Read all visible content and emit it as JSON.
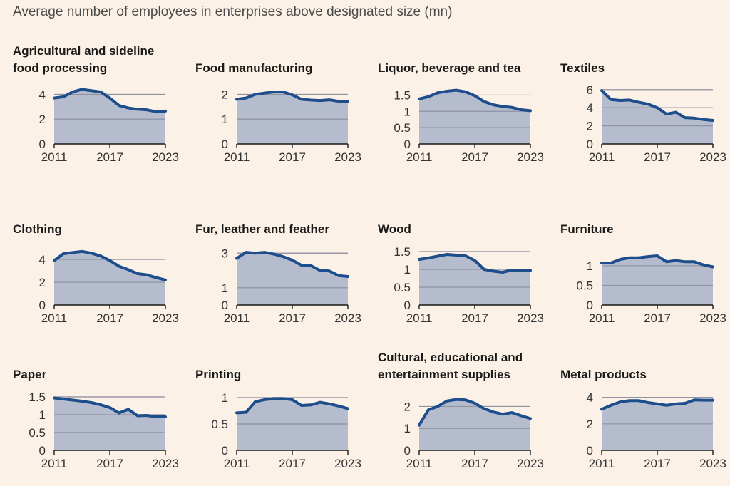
{
  "title": "Average number of employees in enterprises above designated size (mn)",
  "chart_data": [
    {
      "type": "area",
      "title": [
        "Agricultural and sideline",
        "food processing"
      ],
      "x": [
        2011,
        2012,
        2013,
        2014,
        2015,
        2016,
        2017,
        2018,
        2019,
        2020,
        2021,
        2022,
        2023
      ],
      "values": [
        3.7,
        3.8,
        4.2,
        4.4,
        4.3,
        4.2,
        3.7,
        3.1,
        2.9,
        2.8,
        2.75,
        2.6,
        2.65
      ],
      "ylim": [
        0,
        4.6
      ],
      "yticks": [
        0,
        2,
        4
      ],
      "xticks": [
        2011,
        2017,
        2023
      ],
      "grid": true
    },
    {
      "type": "area",
      "title": [
        "Food manufacturing"
      ],
      "x": [
        2011,
        2012,
        2013,
        2014,
        2015,
        2016,
        2017,
        2018,
        2019,
        2020,
        2021,
        2022,
        2023
      ],
      "values": [
        1.8,
        1.85,
        2.0,
        2.05,
        2.1,
        2.1,
        1.98,
        1.8,
        1.77,
        1.75,
        1.78,
        1.72,
        1.72
      ],
      "ylim": [
        0,
        2.3
      ],
      "yticks": [
        0,
        1,
        2
      ],
      "xticks": [
        2011,
        2017,
        2023
      ],
      "grid": true
    },
    {
      "type": "area",
      "title": [
        "Liquor, beverage and tea"
      ],
      "x": [
        2011,
        2012,
        2013,
        2014,
        2015,
        2016,
        2017,
        2018,
        2019,
        2020,
        2021,
        2022,
        2023
      ],
      "values": [
        1.38,
        1.45,
        1.57,
        1.62,
        1.65,
        1.6,
        1.48,
        1.3,
        1.2,
        1.15,
        1.12,
        1.05,
        1.02
      ],
      "ylim": [
        0,
        1.75
      ],
      "yticks": [
        0,
        0.5,
        1,
        1.5
      ],
      "xticks": [
        2011,
        2017,
        2023
      ],
      "grid": true
    },
    {
      "type": "area",
      "title": [
        "Textiles"
      ],
      "x": [
        2011,
        2012,
        2013,
        2014,
        2015,
        2016,
        2017,
        2018,
        2019,
        2020,
        2021,
        2022,
        2023
      ],
      "values": [
        5.9,
        4.9,
        4.8,
        4.85,
        4.6,
        4.4,
        4.0,
        3.3,
        3.5,
        2.9,
        2.85,
        2.7,
        2.6
      ],
      "ylim": [
        0,
        6.3
      ],
      "yticks": [
        0,
        2,
        4,
        6
      ],
      "xticks": [
        2011,
        2017,
        2023
      ],
      "grid": true
    },
    {
      "type": "area",
      "title": [
        "Clothing"
      ],
      "x": [
        2011,
        2012,
        2013,
        2014,
        2015,
        2016,
        2017,
        2018,
        2019,
        2020,
        2021,
        2022,
        2023
      ],
      "values": [
        3.9,
        4.5,
        4.6,
        4.7,
        4.55,
        4.3,
        3.9,
        3.4,
        3.1,
        2.75,
        2.65,
        2.4,
        2.2
      ],
      "ylim": [
        0,
        5
      ],
      "yticks": [
        0,
        2,
        4
      ],
      "xticks": [
        2011,
        2017,
        2023
      ],
      "grid": true
    },
    {
      "type": "area",
      "title": [
        "Fur, leather and feather"
      ],
      "x": [
        2011,
        2012,
        2013,
        2014,
        2015,
        2016,
        2017,
        2018,
        2019,
        2020,
        2021,
        2022,
        2023
      ],
      "values": [
        2.7,
        3.05,
        3.0,
        3.05,
        2.95,
        2.8,
        2.6,
        2.3,
        2.28,
        2.0,
        1.97,
        1.7,
        1.65
      ],
      "ylim": [
        0,
        3.3
      ],
      "yticks": [
        0,
        1,
        3
      ],
      "xticks": [
        2011,
        2017,
        2023
      ],
      "grid": true
    },
    {
      "type": "area",
      "title": [
        "Wood"
      ],
      "x": [
        2011,
        2012,
        2013,
        2014,
        2015,
        2016,
        2017,
        2018,
        2019,
        2020,
        2021,
        2022,
        2023
      ],
      "values": [
        1.28,
        1.32,
        1.37,
        1.42,
        1.4,
        1.38,
        1.25,
        1.0,
        0.95,
        0.92,
        0.98,
        0.97,
        0.97
      ],
      "ylim": [
        0,
        1.6
      ],
      "yticks": [
        0,
        0.5,
        1,
        1.5
      ],
      "xticks": [
        2011,
        2017,
        2023
      ],
      "grid": true
    },
    {
      "type": "area",
      "title": [
        "Furniture"
      ],
      "x": [
        2011,
        2012,
        2013,
        2014,
        2015,
        2016,
        2017,
        2018,
        2019,
        2020,
        2021,
        2022,
        2023
      ],
      "values": [
        1.07,
        1.07,
        1.16,
        1.2,
        1.2,
        1.23,
        1.25,
        1.1,
        1.13,
        1.1,
        1.1,
        1.02,
        0.97
      ],
      "ylim": [
        0,
        1.45
      ],
      "yticks": [
        0,
        0.5,
        1
      ],
      "xticks": [
        2011,
        2017,
        2023
      ],
      "grid": true
    },
    {
      "type": "area",
      "title": [
        "Paper"
      ],
      "x": [
        2011,
        2012,
        2013,
        2014,
        2015,
        2016,
        2017,
        2018,
        2019,
        2020,
        2021,
        2022,
        2023
      ],
      "values": [
        1.47,
        1.44,
        1.41,
        1.38,
        1.34,
        1.28,
        1.2,
        1.05,
        1.15,
        0.97,
        0.98,
        0.94,
        0.94
      ],
      "ylim": [
        0,
        1.6
      ],
      "yticks": [
        0,
        0.5,
        1,
        1.5
      ],
      "xticks": [
        2011,
        2017,
        2023
      ],
      "grid": true
    },
    {
      "type": "area",
      "title": [
        "Printing"
      ],
      "x": [
        2011,
        2012,
        2013,
        2014,
        2015,
        2016,
        2017,
        2018,
        2019,
        2020,
        2021,
        2022,
        2023
      ],
      "values": [
        0.71,
        0.72,
        0.92,
        0.96,
        0.98,
        0.98,
        0.96,
        0.85,
        0.86,
        0.91,
        0.88,
        0.84,
        0.79
      ],
      "ylim": [
        0,
        1.08
      ],
      "yticks": [
        0,
        0.5,
        1
      ],
      "xticks": [
        2011,
        2017,
        2023
      ],
      "grid": true
    },
    {
      "type": "area",
      "title": [
        "Cultural, educational and",
        "entertainment supplies"
      ],
      "x": [
        2011,
        2012,
        2013,
        2014,
        2015,
        2016,
        2017,
        2018,
        2019,
        2020,
        2021,
        2022,
        2023
      ],
      "values": [
        1.15,
        1.85,
        2.0,
        2.25,
        2.32,
        2.3,
        2.15,
        1.9,
        1.75,
        1.65,
        1.72,
        1.58,
        1.45
      ],
      "ylim": [
        0,
        2.6
      ],
      "yticks": [
        0,
        1,
        2
      ],
      "xticks": [
        2011,
        2017,
        2023
      ],
      "grid": true
    },
    {
      "type": "area",
      "title": [
        "Metal products"
      ],
      "x": [
        2011,
        2012,
        2013,
        2014,
        2015,
        2016,
        2017,
        2018,
        2019,
        2020,
        2021,
        2022,
        2023
      ],
      "values": [
        3.1,
        3.4,
        3.65,
        3.75,
        3.75,
        3.6,
        3.5,
        3.4,
        3.5,
        3.55,
        3.8,
        3.78,
        3.78
      ],
      "ylim": [
        0,
        4.3
      ],
      "yticks": [
        0,
        2,
        4
      ],
      "xticks": [
        2011,
        2017,
        2023
      ],
      "grid": true
    }
  ],
  "colors": {
    "background": "#fcf1e6",
    "line": "#1e4d8c",
    "area": "#b5bccd",
    "grid": "#b9b3ac",
    "axis": "#1a1a1a"
  }
}
